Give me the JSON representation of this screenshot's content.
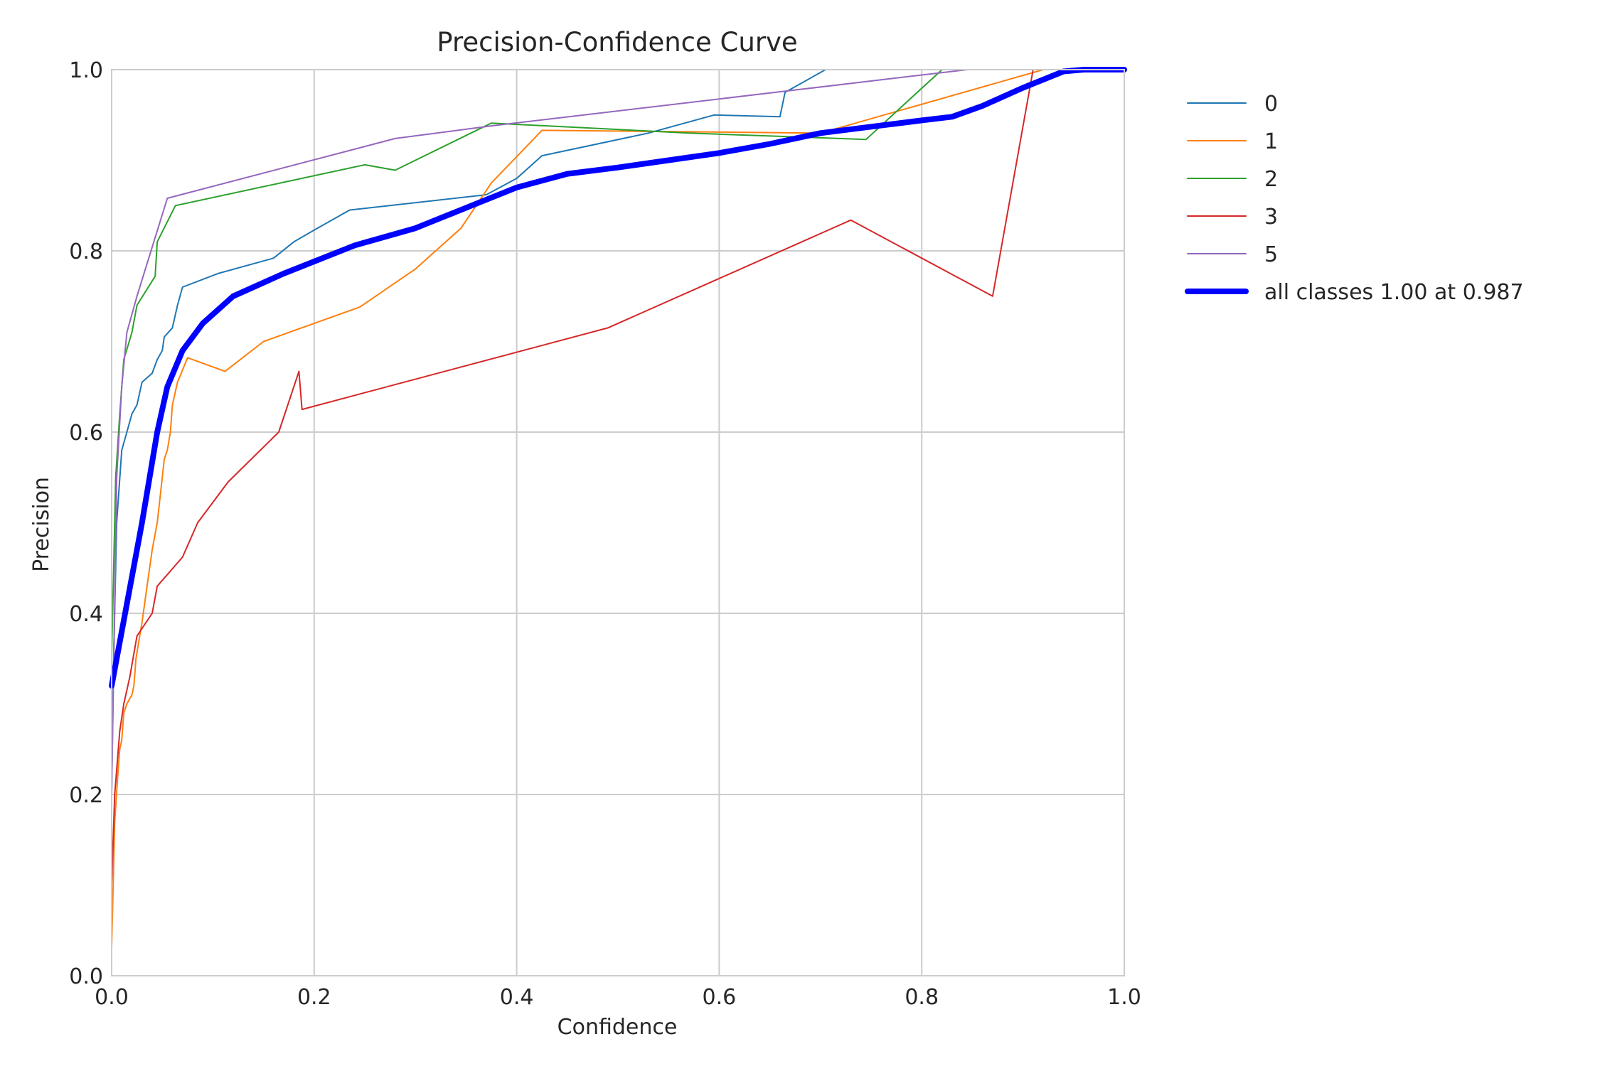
{
  "chart_data": {
    "type": "line",
    "title": "Precision-Confidence Curve",
    "xlabel": "Confidence",
    "ylabel": "Precision",
    "xlim": [
      0.0,
      1.0
    ],
    "ylim": [
      0.0,
      1.0
    ],
    "xticks": [
      "0.0",
      "0.2",
      "0.4",
      "0.6",
      "0.8",
      "1.0"
    ],
    "yticks": [
      "0.0",
      "0.2",
      "0.4",
      "0.6",
      "0.8",
      "1.0"
    ],
    "grid": true,
    "legend_position": "outside-right",
    "series": [
      {
        "name": "0",
        "color": "#1f77b4",
        "width": 2,
        "points": [
          [
            0.0,
            0.2
          ],
          [
            0.002,
            0.35
          ],
          [
            0.005,
            0.5
          ],
          [
            0.01,
            0.58
          ],
          [
            0.015,
            0.6
          ],
          [
            0.02,
            0.62
          ],
          [
            0.025,
            0.63
          ],
          [
            0.03,
            0.655
          ],
          [
            0.04,
            0.665
          ],
          [
            0.045,
            0.68
          ],
          [
            0.05,
            0.69
          ],
          [
            0.052,
            0.705
          ],
          [
            0.06,
            0.715
          ],
          [
            0.065,
            0.74
          ],
          [
            0.07,
            0.76
          ],
          [
            0.105,
            0.775
          ],
          [
            0.16,
            0.792
          ],
          [
            0.18,
            0.81
          ],
          [
            0.2,
            0.823
          ],
          [
            0.235,
            0.845
          ],
          [
            0.37,
            0.862
          ],
          [
            0.4,
            0.88
          ],
          [
            0.425,
            0.905
          ],
          [
            0.53,
            0.93
          ],
          [
            0.595,
            0.95
          ],
          [
            0.66,
            0.948
          ],
          [
            0.665,
            0.975
          ],
          [
            0.705,
            1.0
          ],
          [
            1.0,
            1.0
          ]
        ]
      },
      {
        "name": "1",
        "color": "#ff7f0e",
        "width": 2,
        "points": [
          [
            0.0,
            0.03
          ],
          [
            0.003,
            0.17
          ],
          [
            0.006,
            0.22
          ],
          [
            0.008,
            0.25
          ],
          [
            0.01,
            0.26
          ],
          [
            0.012,
            0.29
          ],
          [
            0.015,
            0.3
          ],
          [
            0.02,
            0.31
          ],
          [
            0.022,
            0.32
          ],
          [
            0.024,
            0.35
          ],
          [
            0.027,
            0.37
          ],
          [
            0.03,
            0.39
          ],
          [
            0.035,
            0.43
          ],
          [
            0.04,
            0.47
          ],
          [
            0.045,
            0.5
          ],
          [
            0.048,
            0.53
          ],
          [
            0.05,
            0.55
          ],
          [
            0.052,
            0.57
          ],
          [
            0.055,
            0.58
          ],
          [
            0.058,
            0.6
          ],
          [
            0.06,
            0.63
          ],
          [
            0.065,
            0.655
          ],
          [
            0.075,
            0.682
          ],
          [
            0.112,
            0.667
          ],
          [
            0.15,
            0.7
          ],
          [
            0.245,
            0.738
          ],
          [
            0.3,
            0.78
          ],
          [
            0.345,
            0.825
          ],
          [
            0.375,
            0.875
          ],
          [
            0.425,
            0.933
          ],
          [
            0.52,
            0.932
          ],
          [
            0.7,
            0.93
          ],
          [
            0.92,
            1.0
          ],
          [
            1.0,
            1.0
          ]
        ]
      },
      {
        "name": "2",
        "color": "#2ca02c",
        "width": 2,
        "points": [
          [
            0.0,
            0.35
          ],
          [
            0.004,
            0.55
          ],
          [
            0.008,
            0.62
          ],
          [
            0.012,
            0.68
          ],
          [
            0.02,
            0.71
          ],
          [
            0.025,
            0.74
          ],
          [
            0.043,
            0.772
          ],
          [
            0.045,
            0.81
          ],
          [
            0.063,
            0.85
          ],
          [
            0.25,
            0.895
          ],
          [
            0.28,
            0.889
          ],
          [
            0.375,
            0.941
          ],
          [
            0.57,
            0.93
          ],
          [
            0.745,
            0.923
          ],
          [
            0.82,
            1.0
          ],
          [
            1.0,
            1.0
          ]
        ]
      },
      {
        "name": "3",
        "color": "#d62728",
        "width": 2,
        "points": [
          [
            0.0,
            0.1
          ],
          [
            0.003,
            0.2
          ],
          [
            0.008,
            0.27
          ],
          [
            0.012,
            0.3
          ],
          [
            0.018,
            0.33
          ],
          [
            0.025,
            0.375
          ],
          [
            0.04,
            0.4
          ],
          [
            0.045,
            0.43
          ],
          [
            0.07,
            0.462
          ],
          [
            0.085,
            0.5
          ],
          [
            0.115,
            0.545
          ],
          [
            0.165,
            0.6
          ],
          [
            0.185,
            0.667
          ],
          [
            0.188,
            0.625
          ],
          [
            0.49,
            0.715
          ],
          [
            0.73,
            0.834
          ],
          [
            0.87,
            0.75
          ],
          [
            0.91,
            1.0
          ],
          [
            1.0,
            1.0
          ]
        ]
      },
      {
        "name": "5",
        "color": "#9467bd",
        "width": 2,
        "points": [
          [
            0.0,
            0.2
          ],
          [
            0.005,
            0.55
          ],
          [
            0.01,
            0.65
          ],
          [
            0.015,
            0.71
          ],
          [
            0.025,
            0.75
          ],
          [
            0.055,
            0.858
          ],
          [
            0.28,
            0.924
          ],
          [
            0.375,
            0.938
          ],
          [
            0.845,
            1.0
          ],
          [
            1.0,
            1.0
          ]
        ]
      },
      {
        "name": "all classes 1.00 at 0.987",
        "color": "#0000ff",
        "width": 8,
        "points": [
          [
            0.0,
            0.32
          ],
          [
            0.01,
            0.38
          ],
          [
            0.03,
            0.5
          ],
          [
            0.045,
            0.6
          ],
          [
            0.055,
            0.65
          ],
          [
            0.07,
            0.69
          ],
          [
            0.09,
            0.72
          ],
          [
            0.12,
            0.75
          ],
          [
            0.17,
            0.775
          ],
          [
            0.24,
            0.806
          ],
          [
            0.3,
            0.825
          ],
          [
            0.36,
            0.852
          ],
          [
            0.4,
            0.87
          ],
          [
            0.45,
            0.885
          ],
          [
            0.5,
            0.892
          ],
          [
            0.55,
            0.9
          ],
          [
            0.6,
            0.908
          ],
          [
            0.65,
            0.918
          ],
          [
            0.7,
            0.93
          ],
          [
            0.75,
            0.937
          ],
          [
            0.8,
            0.944
          ],
          [
            0.83,
            0.948
          ],
          [
            0.86,
            0.96
          ],
          [
            0.9,
            0.98
          ],
          [
            0.94,
            0.998
          ],
          [
            0.96,
            1.0
          ],
          [
            1.0,
            1.0
          ]
        ]
      }
    ]
  }
}
